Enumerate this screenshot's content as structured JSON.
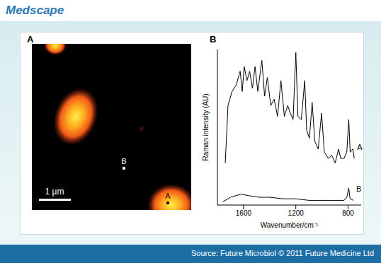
{
  "header": {
    "logo": "Medscape"
  },
  "figure": {
    "panel_labels": [
      "A",
      "B"
    ],
    "image": {
      "point_labels": [
        "A",
        "B"
      ],
      "scale_bar": "1 µm"
    }
  },
  "footer": "Source: Future Microbiol © 2011 Future Medicine Ltd",
  "chart_data": {
    "type": "line",
    "x_label": "Wavenumber/cm⁻¹",
    "y_label": "Raman intensity (AU)",
    "xlim": [
      1800,
      700
    ],
    "xticks": [
      1600,
      1200,
      800
    ],
    "ylim": [
      0,
      100
    ],
    "tick_labels": "x",
    "series": [
      {
        "name": "A",
        "color": "#000000",
        "x": [
          1740,
          1719,
          1688,
          1657,
          1626,
          1610,
          1595,
          1574,
          1553,
          1532,
          1512,
          1491,
          1460,
          1439,
          1418,
          1392,
          1366,
          1340,
          1314,
          1288,
          1262,
          1242,
          1221,
          1200,
          1184,
          1158,
          1132,
          1117,
          1096,
          1075,
          1055,
          1029,
          1003,
          982,
          951,
          925,
          899,
          873,
          857,
          831,
          810,
          795,
          784,
          764,
          753
        ],
        "values": [
          27,
          64,
          73,
          77,
          86,
          73,
          89,
          80,
          86,
          75,
          89,
          73,
          93,
          70,
          82,
          64,
          68,
          57,
          80,
          57,
          64,
          59,
          55,
          98,
          57,
          55,
          80,
          48,
          43,
          66,
          41,
          36,
          59,
          34,
          30,
          32,
          27,
          36,
          30,
          30,
          34,
          55,
          34,
          36,
          30
        ]
      },
      {
        "name": "B",
        "color": "#000000",
        "x": [
          1760,
          1700,
          1620,
          1560,
          1480,
          1400,
          1300,
          1200,
          1100,
          1000,
          900,
          830,
          810,
          795,
          785,
          760
        ],
        "values": [
          2,
          5,
          7,
          6,
          5,
          5,
          4,
          4,
          3,
          3,
          3,
          3,
          5,
          11,
          4,
          3
        ]
      }
    ]
  }
}
